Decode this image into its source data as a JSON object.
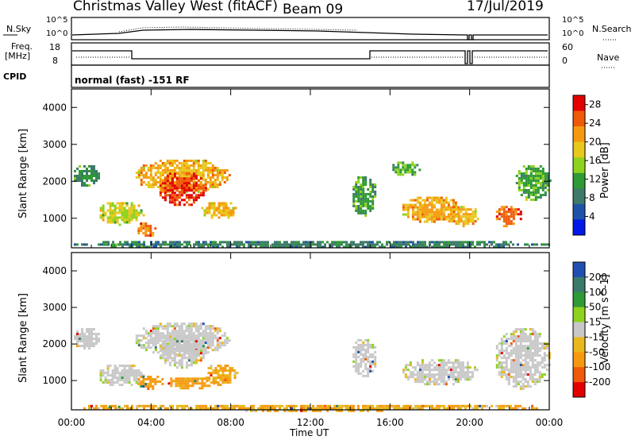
{
  "header": {
    "station": "Christmas Valley West (fitACF)",
    "beam": "Beam 09",
    "date": "17/Jul/2019"
  },
  "status_panels": {
    "nsky_label": "N.Sky",
    "nsky_ticks": [
      "10^5",
      "10^0"
    ],
    "nsearch_label": "N.Search",
    "freq_label": "Freq.",
    "freq_unit": "[MHz]",
    "freq_ticks": [
      "18",
      "8"
    ],
    "nave_ticks": [
      "60",
      "0"
    ],
    "nave_label": "Nave",
    "cpid_label": "CPID",
    "cpid_text": "normal (fast) -151 RF"
  },
  "chart_data": [
    {
      "type": "heatmap",
      "name": "power",
      "ylabel": "Slant Range [km]",
      "xlabel": "",
      "x_ticks": [
        "00:00",
        "04:00",
        "08:00",
        "12:00",
        "16:00",
        "20:00",
        "00:00"
      ],
      "y_ticks": [
        1000,
        2000,
        3000,
        4000
      ],
      "ylim": [
        200,
        4500
      ],
      "colorbar_label": "Power [dB]",
      "colorbar_ticks": [
        4,
        8,
        12,
        16,
        20,
        24,
        28
      ],
      "colorbar_range": [
        0,
        30
      ],
      "colors": [
        "#0018e8",
        "#1e52a8",
        "#3d7a6a",
        "#2f9a36",
        "#8fd21e",
        "#e8c81c",
        "#f59a10",
        "#ef5a0a",
        "#e20000"
      ],
      "regions": [
        {
          "t0": 0.0,
          "t1": 1.4,
          "r0": 1900,
          "r1": 2500,
          "level": 10
        },
        {
          "t0": 1.3,
          "t1": 3.6,
          "r0": 850,
          "r1": 1500,
          "level": 17
        },
        {
          "t0": 3.2,
          "t1": 4.2,
          "r0": 500,
          "r1": 950,
          "level": 24
        },
        {
          "t0": 3.1,
          "t1": 7.9,
          "r0": 1700,
          "r1": 2650,
          "level": 21
        },
        {
          "t0": 4.3,
          "t1": 6.7,
          "r0": 1350,
          "r1": 2300,
          "level": 28
        },
        {
          "t0": 6.4,
          "t1": 8.3,
          "r0": 1000,
          "r1": 1500,
          "level": 20
        },
        {
          "t0": 14.0,
          "t1": 15.3,
          "r0": 1100,
          "r1": 2200,
          "level": 11
        },
        {
          "t0": 16.0,
          "t1": 17.5,
          "r0": 2150,
          "r1": 2600,
          "level": 12
        },
        {
          "t0": 16.5,
          "t1": 19.5,
          "r0": 900,
          "r1": 1650,
          "level": 22
        },
        {
          "t0": 18.8,
          "t1": 20.4,
          "r0": 800,
          "r1": 1400,
          "level": 21
        },
        {
          "t0": 21.2,
          "t1": 22.6,
          "r0": 800,
          "r1": 1400,
          "level": 26
        },
        {
          "t0": 22.2,
          "t1": 24.0,
          "r0": 1500,
          "r1": 2500,
          "level": 12
        },
        {
          "t0": 0.0,
          "t1": 24.0,
          "r0": 200,
          "r1": 450,
          "level": 8
        },
        {
          "t0": 1.5,
          "t1": 2.6,
          "r0": 300,
          "r1": 380,
          "level": 14
        }
      ]
    },
    {
      "type": "heatmap",
      "name": "velocity",
      "ylabel": "Slant Range [km]",
      "xlabel": "Time UT",
      "x_ticks": [
        "00:00",
        "04:00",
        "08:00",
        "12:00",
        "16:00",
        "20:00",
        "00:00"
      ],
      "y_ticks": [
        1000,
        2000,
        3000,
        4000
      ],
      "ylim": [
        200,
        4500
      ],
      "colorbar_label": "Velocity [m s^-1]",
      "colorbar_ticks": [
        200,
        100,
        50,
        15,
        -15,
        -50,
        -100,
        -200
      ],
      "colors": [
        "#1f4fb0",
        "#3a7a6a",
        "#2f9a36",
        "#8fd21e",
        "#c8c8c8",
        "#e8b81c",
        "#f59a10",
        "#ef5a0a",
        "#e20000"
      ],
      "regions": [
        {
          "t0": 0.0,
          "t1": 1.4,
          "r0": 1900,
          "r1": 2500,
          "level": 0
        },
        {
          "t0": 1.3,
          "t1": 3.6,
          "r0": 850,
          "r1": 1500,
          "level": 0
        },
        {
          "t0": 3.2,
          "t1": 4.6,
          "r0": 800,
          "r1": 1200,
          "level": -60
        },
        {
          "t0": 4.6,
          "t1": 7.2,
          "r0": 800,
          "r1": 1150,
          "level": -40
        },
        {
          "t0": 6.6,
          "t1": 8.3,
          "r0": 900,
          "r1": 1500,
          "level": -30
        },
        {
          "t0": 3.1,
          "t1": 7.9,
          "r0": 1700,
          "r1": 2650,
          "level": 0
        },
        {
          "t0": 4.3,
          "t1": 6.7,
          "r0": 1350,
          "r1": 2300,
          "level": 0
        },
        {
          "t0": 14.0,
          "t1": 15.3,
          "r0": 1100,
          "r1": 2200,
          "level": 0
        },
        {
          "t0": 16.5,
          "t1": 20.4,
          "r0": 900,
          "r1": 1650,
          "level": 0
        },
        {
          "t0": 21.2,
          "t1": 24.0,
          "r0": 800,
          "r1": 2500,
          "level": 0
        },
        {
          "t0": 0.0,
          "t1": 24.0,
          "r0": 200,
          "r1": 400,
          "level": -30
        },
        {
          "t0": 1.5,
          "t1": 2.6,
          "r0": 300,
          "r1": 380,
          "level": 40
        }
      ]
    }
  ]
}
